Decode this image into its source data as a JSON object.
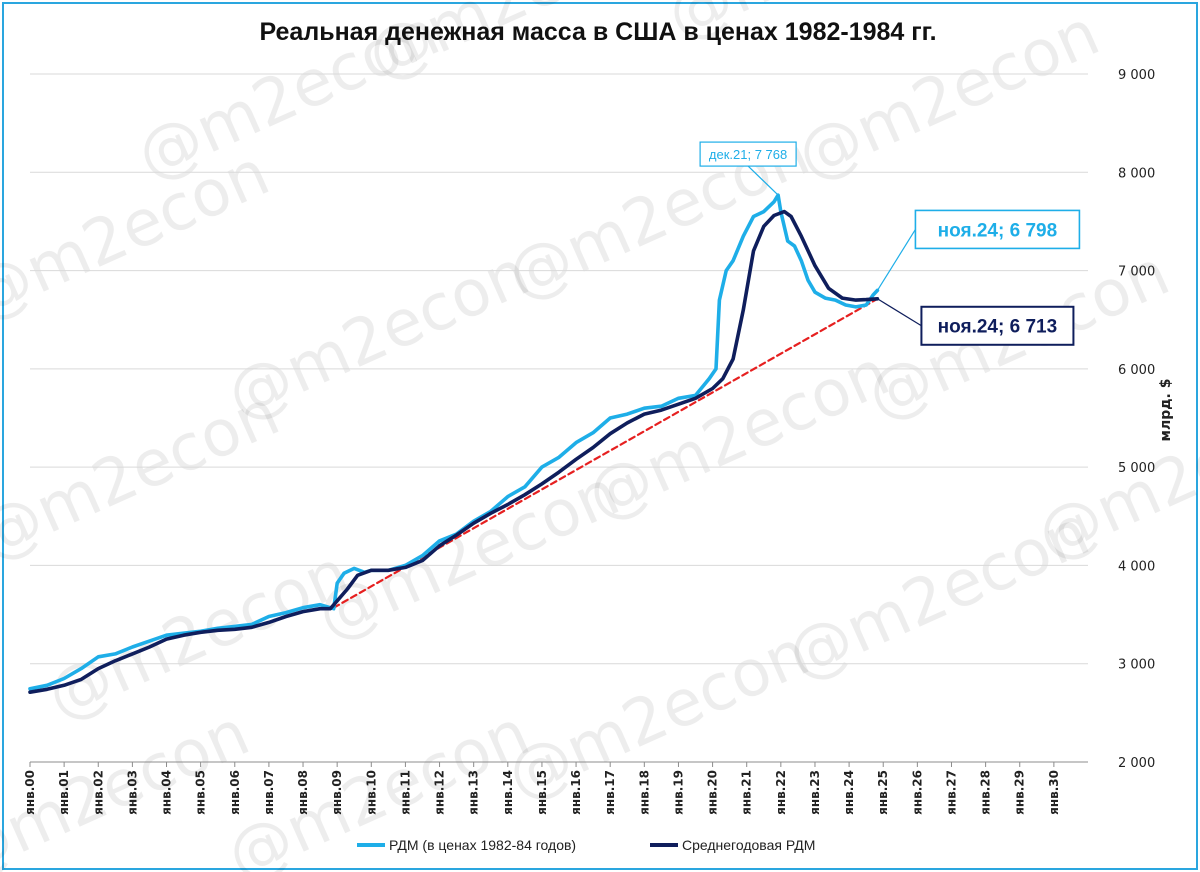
{
  "chart_data": {
    "type": "line",
    "title": "Реальная денежная масса в США в ценах 1982-1984 гг.",
    "ylabel": "млрд. $",
    "ylim": [
      2000,
      9000
    ],
    "yticks": [
      2000,
      3000,
      4000,
      5000,
      6000,
      7000,
      8000,
      9000
    ],
    "ytick_labels": [
      "2 000",
      "3 000",
      "4 000",
      "5 000",
      "6 000",
      "7 000",
      "8 000",
      "9 000"
    ],
    "xlim": [
      2000,
      2031
    ],
    "xticks": [
      2000,
      2001,
      2002,
      2003,
      2004,
      2005,
      2006,
      2007,
      2008,
      2009,
      2010,
      2011,
      2012,
      2013,
      2014,
      2015,
      2016,
      2017,
      2018,
      2019,
      2020,
      2021,
      2022,
      2023,
      2024,
      2025,
      2026,
      2027,
      2028,
      2029,
      2030
    ],
    "xtick_labels": [
      "янв.00",
      "янв.01",
      "янв.02",
      "янв.03",
      "янв.04",
      "янв.05",
      "янв.06",
      "янв.07",
      "янв.08",
      "янв.09",
      "янв.10",
      "янв.11",
      "янв.12",
      "янв.13",
      "янв.14",
      "янв.15",
      "янв.16",
      "янв.17",
      "янв.18",
      "янв.19",
      "янв.20",
      "янв.21",
      "янв.22",
      "янв.23",
      "янв.24",
      "янв.25",
      "янв.26",
      "янв.27",
      "янв.28",
      "янв.29",
      "янв.30"
    ],
    "grid": true,
    "legend_position": "bottom",
    "watermark": "@m2econ",
    "series": [
      {
        "name": "РДМ (в ценах 1982-84 годов)",
        "color": "#1eaee8",
        "x": [
          2000.0,
          2000.5,
          2001.0,
          2001.5,
          2002.0,
          2002.5,
          2003.0,
          2003.5,
          2004.0,
          2004.5,
          2005.0,
          2005.5,
          2006.0,
          2006.5,
          2007.0,
          2007.5,
          2008.0,
          2008.5,
          2008.9,
          2009.0,
          2009.2,
          2009.5,
          2009.8,
          2010.0,
          2010.5,
          2011.0,
          2011.5,
          2012.0,
          2012.5,
          2013.0,
          2013.5,
          2014.0,
          2014.5,
          2015.0,
          2015.5,
          2016.0,
          2016.5,
          2017.0,
          2017.5,
          2018.0,
          2018.5,
          2019.0,
          2019.5,
          2019.9,
          2020.1,
          2020.2,
          2020.4,
          2020.6,
          2020.9,
          2021.2,
          2021.5,
          2021.8,
          2021.92,
          2022.0,
          2022.2,
          2022.4,
          2022.6,
          2022.8,
          2023.0,
          2023.3,
          2023.6,
          2023.9,
          2024.2,
          2024.5,
          2024.7,
          2024.83
        ],
        "y": [
          2745,
          2780,
          2850,
          2950,
          3070,
          3100,
          3170,
          3230,
          3290,
          3310,
          3330,
          3360,
          3380,
          3400,
          3480,
          3520,
          3570,
          3600,
          3560,
          3820,
          3920,
          3970,
          3930,
          3950,
          3950,
          4000,
          4100,
          4250,
          4320,
          4450,
          4550,
          4700,
          4800,
          5000,
          5100,
          5250,
          5350,
          5500,
          5540,
          5600,
          5620,
          5700,
          5730,
          5900,
          6000,
          6700,
          7000,
          7100,
          7350,
          7550,
          7600,
          7700,
          7768,
          7600,
          7300,
          7250,
          7100,
          6900,
          6780,
          6720,
          6700,
          6650,
          6630,
          6650,
          6750,
          6798
        ]
      },
      {
        "name": "Среднегодовая РДМ",
        "color": "#0f1e5c",
        "x": [
          2000.0,
          2000.5,
          2001.0,
          2001.5,
          2002.0,
          2002.5,
          2003.0,
          2003.5,
          2004.0,
          2004.5,
          2005.0,
          2005.5,
          2006.0,
          2006.5,
          2007.0,
          2007.5,
          2008.0,
          2008.5,
          2008.8,
          2009.0,
          2009.3,
          2009.6,
          2010.0,
          2010.5,
          2011.0,
          2011.5,
          2012.0,
          2012.5,
          2013.0,
          2013.5,
          2014.0,
          2014.5,
          2015.0,
          2015.5,
          2016.0,
          2016.5,
          2017.0,
          2017.5,
          2018.0,
          2018.5,
          2019.0,
          2019.5,
          2020.0,
          2020.3,
          2020.6,
          2020.9,
          2021.2,
          2021.5,
          2021.8,
          2022.1,
          2022.3,
          2022.6,
          2023.0,
          2023.4,
          2023.8,
          2024.2,
          2024.5,
          2024.83
        ],
        "y": [
          2710,
          2740,
          2780,
          2840,
          2950,
          3030,
          3100,
          3170,
          3250,
          3290,
          3320,
          3340,
          3350,
          3370,
          3420,
          3480,
          3530,
          3560,
          3560,
          3640,
          3760,
          3900,
          3950,
          3950,
          3980,
          4050,
          4200,
          4310,
          4430,
          4530,
          4620,
          4720,
          4830,
          4950,
          5080,
          5200,
          5340,
          5450,
          5540,
          5580,
          5640,
          5700,
          5800,
          5900,
          6100,
          6600,
          7200,
          7450,
          7560,
          7600,
          7550,
          7350,
          7050,
          6820,
          6720,
          6700,
          6705,
          6713
        ]
      },
      {
        "name": "trend",
        "color": "#e62020",
        "dashed": true,
        "x": [
          2008.9,
          2024.83
        ],
        "y": [
          3570,
          6713
        ]
      }
    ],
    "annotations": [
      {
        "text": "дек.21; 7 768",
        "x": 2021.92,
        "y": 7768,
        "color": "#1eaee8",
        "size": "small"
      },
      {
        "text": "ноя.24; 6 798",
        "x": 2024.83,
        "y": 6798,
        "color": "#1eaee8",
        "size": "large"
      },
      {
        "text": "ноя.24; 6 713",
        "x": 2024.83,
        "y": 6713,
        "color": "#0f1e5c",
        "size": "large"
      }
    ]
  }
}
